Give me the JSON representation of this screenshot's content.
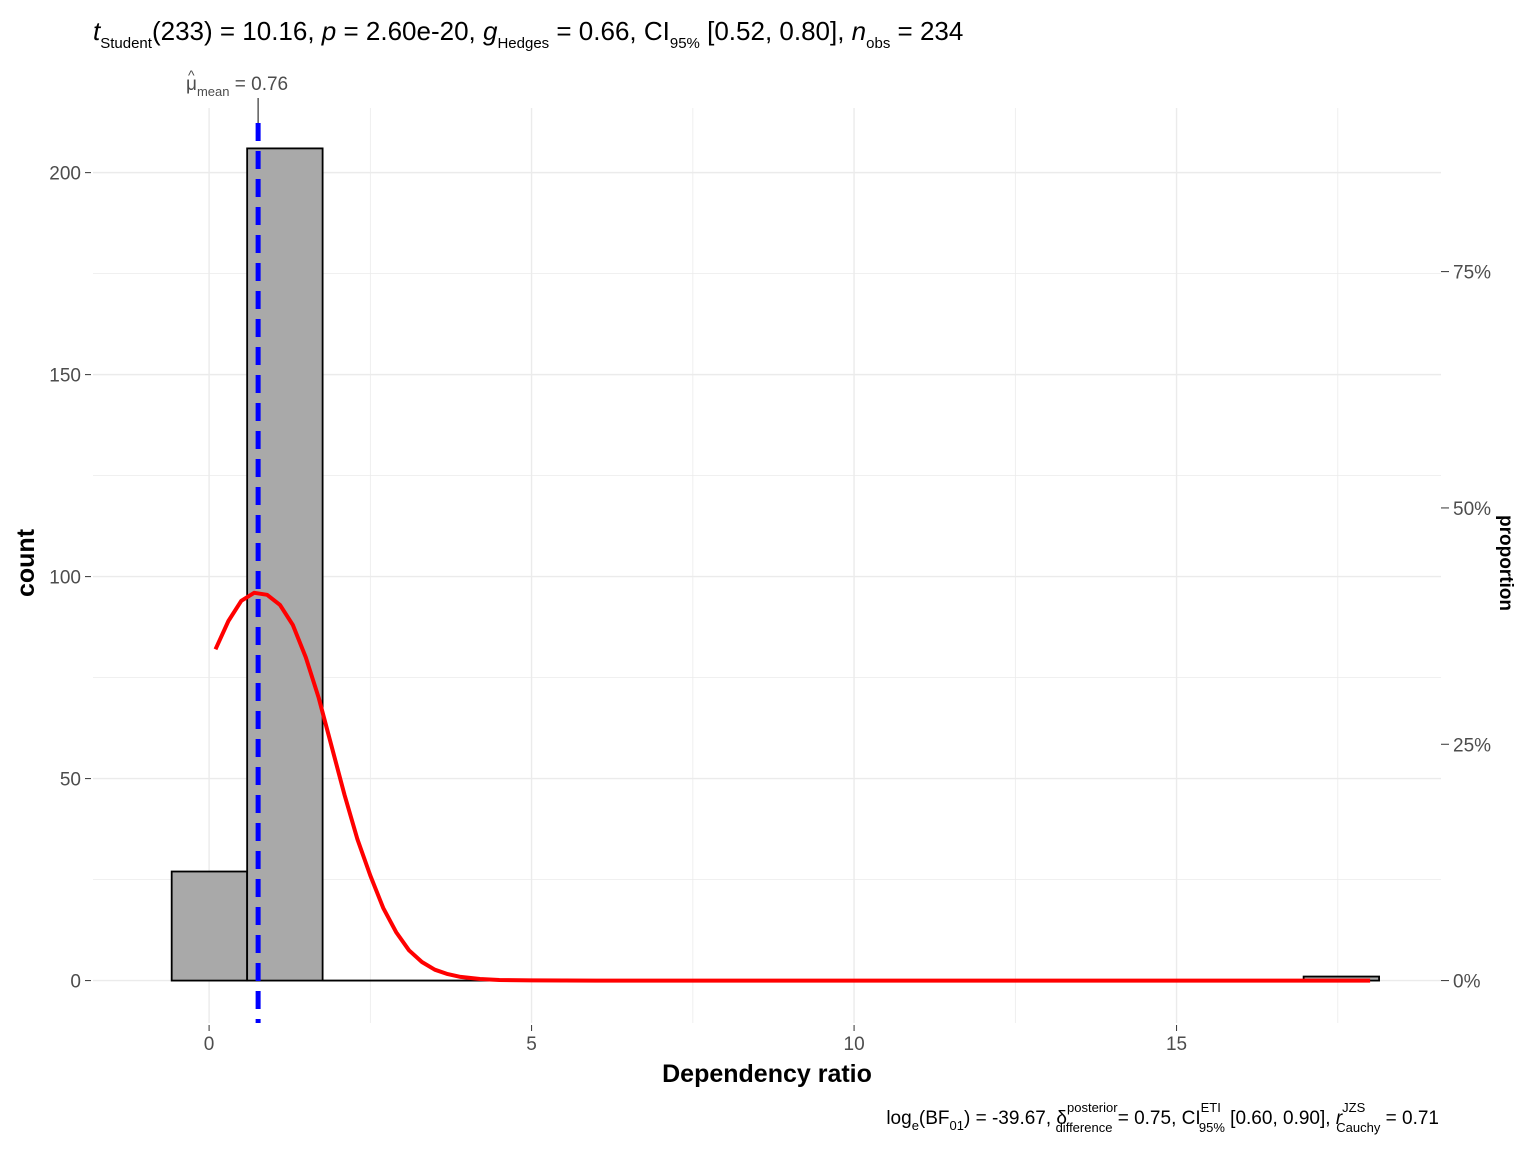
{
  "chart_data": {
    "type": "histogram",
    "title": {
      "t_sym": "t",
      "t_sub": "Student",
      "t_val": "(233) = 10.16, ",
      "p_sym": "p",
      "p_val": " = 2.60e-20, ",
      "g_sym": "g",
      "g_sub": "Hedges",
      "g_val": " = 0.66, CI",
      "ci_sub": "95%",
      "ci_val": " [0.52, 0.80], ",
      "n_sym": "n",
      "n_sub": "obs",
      "n_val": " = 234"
    },
    "caption": {
      "log_text": "log",
      "log_sub": "e",
      "bf_open": "(BF",
      "bf_sub": "01",
      "bf_val": ") = -39.67, ",
      "delta_sym": "δ",
      "delta_sup": "posterior",
      "delta_sub": "difference",
      "delta_val": " = 0.75, CI",
      "ci_sup": "ETI",
      "ci_sub": "95%",
      "ci_val": " [0.60, 0.90], ",
      "r_sym": "r",
      "r_sup": "JZS",
      "r_sub": "Cauchy",
      "r_val": " = 0.71"
    },
    "mean_label": {
      "sym": "μ",
      "sub": "mean",
      "val": " = 0.76"
    },
    "xlabel": "Dependency ratio",
    "ylabel": "count",
    "y2label": "proportion",
    "xlim": [
      -1.8,
      19.1
    ],
    "ylim": [
      -10.5,
      216
    ],
    "x_ticks": [
      0,
      5,
      10,
      15
    ],
    "y_ticks": [
      0,
      50,
      100,
      150,
      200
    ],
    "y2_ticks": [
      "0%",
      "25%",
      "50%",
      "75%"
    ],
    "y2_tick_values": [
      0,
      0.25,
      0.5,
      0.75
    ],
    "n_obs": 234,
    "bin_width": 1.17,
    "bins": [
      {
        "x0": -0.58,
        "x1": 0.59,
        "count": 27
      },
      {
        "x0": 0.59,
        "x1": 1.76,
        "count": 206
      },
      {
        "x0": 16.97,
        "x1": 18.14,
        "count": 1
      }
    ],
    "mean": 0.76,
    "density_curve": {
      "x": [
        0.1,
        0.3,
        0.5,
        0.7,
        0.9,
        1.1,
        1.3,
        1.5,
        1.7,
        1.9,
        2.1,
        2.3,
        2.5,
        2.7,
        2.9,
        3.1,
        3.3,
        3.5,
        3.7,
        3.9,
        4.2,
        4.5,
        5.0,
        6.0,
        8.0,
        10.0,
        12.0,
        14.0,
        16.0,
        18.0
      ],
      "y": [
        82,
        89,
        94,
        96,
        95.5,
        93,
        88,
        80,
        70,
        58,
        46,
        35,
        26,
        18,
        12,
        7.5,
        4.6,
        2.7,
        1.6,
        0.9,
        0.4,
        0.15,
        0.05,
        0,
        0,
        0,
        0,
        0,
        0,
        0
      ]
    },
    "colors": {
      "bar_fill": "#a9a9a9",
      "bar_stroke": "#000000",
      "density": "#ff0000",
      "mean_line": "#0000ff",
      "grid": "#ebebeb"
    },
    "grid": true
  }
}
